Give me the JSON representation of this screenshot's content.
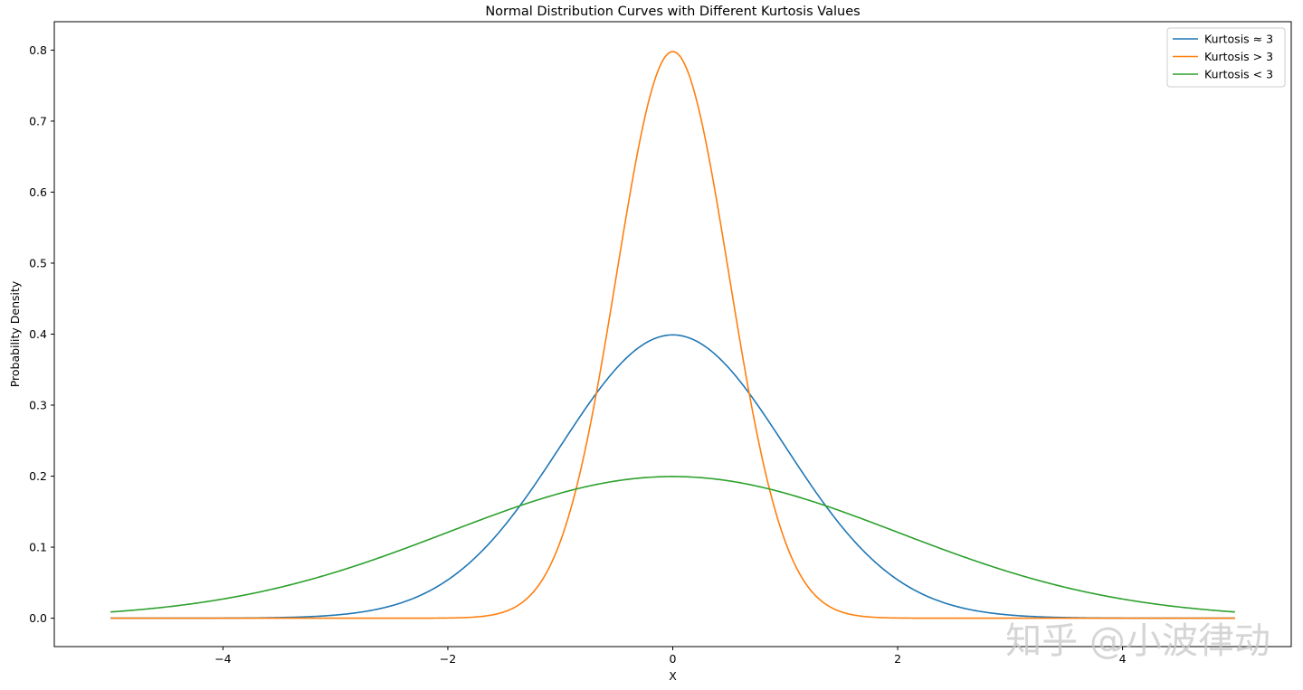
{
  "chart_data": {
    "type": "line",
    "title": "Normal Distribution Curves with Different Kurtosis Values",
    "xlabel": "X",
    "ylabel": "Probability Density",
    "xlim": [
      -5.5,
      5.5
    ],
    "ylim": [
      -0.04,
      0.84
    ],
    "x_range": [
      -5,
      5
    ],
    "x_ticks": [
      -4,
      -2,
      0,
      2,
      4
    ],
    "x_tick_labels": [
      "−4",
      "−2",
      "0",
      "2",
      "4"
    ],
    "y_ticks": [
      0.0,
      0.1,
      0.2,
      0.3,
      0.4,
      0.5,
      0.6,
      0.7,
      0.8
    ],
    "y_tick_labels": [
      "0.0",
      "0.1",
      "0.2",
      "0.3",
      "0.4",
      "0.5",
      "0.6",
      "0.7",
      "0.8"
    ],
    "grid": false,
    "legend_position": "top-right",
    "series": [
      {
        "name": "Kurtosis ≈ 3",
        "color": "#1f77b4",
        "mean": 0,
        "std": 1.0,
        "x": [
          -4,
          -3,
          -2,
          -1,
          0,
          1,
          2,
          3,
          4
        ],
        "values": [
          0.0001,
          0.0044,
          0.054,
          0.242,
          0.399,
          0.242,
          0.054,
          0.0044,
          0.0001
        ]
      },
      {
        "name": "Kurtosis  > 3",
        "color": "#ff7f0e",
        "mean": 0,
        "std": 0.5,
        "x": [
          -2,
          -1.5,
          -1,
          -0.5,
          0,
          0.5,
          1,
          1.5,
          2
        ],
        "values": [
          0.0003,
          0.0089,
          0.108,
          0.484,
          0.798,
          0.484,
          0.108,
          0.0089,
          0.0003
        ]
      },
      {
        "name": "Kurtosis  < 3",
        "color": "#2ca02c",
        "mean": 0,
        "std": 2.0,
        "x": [
          -5,
          -4,
          -2,
          0,
          2,
          4,
          5
        ],
        "values": [
          0.0088,
          0.027,
          0.121,
          0.199,
          0.121,
          0.027,
          0.0088
        ]
      }
    ]
  },
  "watermark": "知乎 @小波律动"
}
